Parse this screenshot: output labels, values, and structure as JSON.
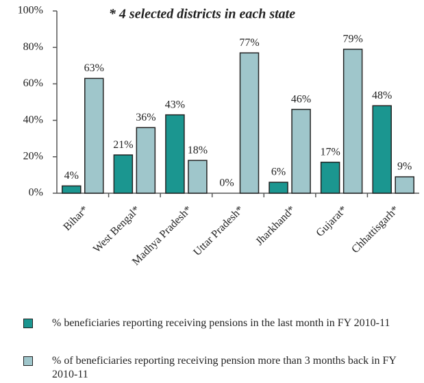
{
  "chart_data": {
    "type": "bar",
    "annotation": "* 4 selected districts in each state",
    "categories": [
      "Bihar*",
      "West Bengal*",
      "Madhya Pradesh*",
      "Uttar Pradesh*",
      "Jharkhand*",
      "Gujarat*",
      "Chhattisgarh*"
    ],
    "series": [
      {
        "name": "% beneficiaries reporting receiving pensions in the last month in FY 2010-11",
        "color": "#1b9690",
        "values": [
          4,
          21,
          43,
          0,
          6,
          17,
          48
        ],
        "value_labels": [
          "4%",
          "21%",
          "43%",
          "0%",
          "6%",
          "17%",
          "48%"
        ]
      },
      {
        "name": "% of beneficiaries reporting receiving pension more than 3 months back in FY 2010-11",
        "color": "#9fc6cb",
        "values": [
          63,
          36,
          18,
          77,
          46,
          79,
          9
        ],
        "value_labels": [
          "63%",
          "36%",
          "18%",
          "77%",
          "46%",
          "79%",
          "9%"
        ]
      }
    ],
    "ylim": [
      0,
      100
    ],
    "yticks": [
      {
        "value": 0,
        "label": "0%"
      },
      {
        "value": 20,
        "label": "20%"
      },
      {
        "value": 40,
        "label": "40%"
      },
      {
        "value": 60,
        "label": "60%"
      },
      {
        "value": 80,
        "label": "80%"
      },
      {
        "value": 100,
        "label": "100%"
      }
    ],
    "grid": false
  }
}
